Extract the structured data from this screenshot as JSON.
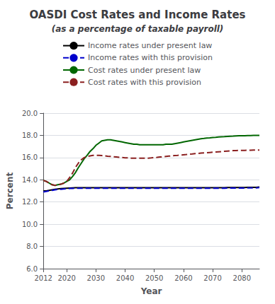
{
  "chart_data": {
    "type": "line",
    "title": "OASDI Cost Rates and Income Rates",
    "subtitle": "(as a percentage of taxable payroll)",
    "xlabel": "Year",
    "ylabel": "Percent",
    "x": [
      2012,
      2013,
      2014,
      2015,
      2016,
      2017,
      2018,
      2019,
      2020,
      2021,
      2022,
      2023,
      2024,
      2025,
      2026,
      2027,
      2028,
      2029,
      2030,
      2031,
      2032,
      2033,
      2034,
      2035,
      2036,
      2037,
      2038,
      2039,
      2040,
      2041,
      2042,
      2043,
      2044,
      2045,
      2046,
      2047,
      2048,
      2049,
      2050,
      2051,
      2052,
      2053,
      2054,
      2055,
      2056,
      2057,
      2058,
      2059,
      2060,
      2061,
      2062,
      2063,
      2064,
      2065,
      2066,
      2067,
      2068,
      2069,
      2070,
      2071,
      2072,
      2073,
      2074,
      2075,
      2076,
      2077,
      2078,
      2079,
      2080,
      2081,
      2082,
      2083,
      2084,
      2085,
      2086
    ],
    "series": [
      {
        "name": "Income rates under present law",
        "color": "#000000",
        "line_style": "solid",
        "values": [
          13.0,
          13.0,
          13.05,
          13.1,
          13.15,
          13.18,
          13.2,
          13.22,
          13.24,
          13.26,
          13.27,
          13.28,
          13.28,
          13.28,
          13.28,
          13.28,
          13.28,
          13.28,
          13.28,
          13.28,
          13.28,
          13.28,
          13.28,
          13.28,
          13.28,
          13.28,
          13.28,
          13.28,
          13.28,
          13.28,
          13.28,
          13.28,
          13.28,
          13.28,
          13.28,
          13.28,
          13.28,
          13.28,
          13.28,
          13.28,
          13.28,
          13.28,
          13.28,
          13.28,
          13.28,
          13.28,
          13.28,
          13.28,
          13.28,
          13.28,
          13.28,
          13.28,
          13.28,
          13.28,
          13.28,
          13.28,
          13.28,
          13.28,
          13.28,
          13.28,
          13.28,
          13.28,
          13.28,
          13.3,
          13.3,
          13.3,
          13.3,
          13.3,
          13.3,
          13.3,
          13.32,
          13.32,
          13.32,
          13.32,
          13.35
        ]
      },
      {
        "name": "Income rates with this provision",
        "color": "#0000cc",
        "line_style": "dashed",
        "values": [
          12.9,
          12.95,
          13.0,
          13.05,
          13.1,
          13.13,
          13.15,
          13.17,
          13.2,
          13.22,
          13.23,
          13.24,
          13.24,
          13.24,
          13.24,
          13.24,
          13.24,
          13.24,
          13.24,
          13.24,
          13.24,
          13.24,
          13.24,
          13.24,
          13.24,
          13.24,
          13.24,
          13.24,
          13.24,
          13.24,
          13.24,
          13.24,
          13.24,
          13.24,
          13.24,
          13.24,
          13.24,
          13.24,
          13.24,
          13.24,
          13.24,
          13.24,
          13.24,
          13.24,
          13.24,
          13.24,
          13.24,
          13.24,
          13.24,
          13.24,
          13.24,
          13.24,
          13.24,
          13.24,
          13.24,
          13.24,
          13.24,
          13.24,
          13.24,
          13.24,
          13.24,
          13.24,
          13.24,
          13.25,
          13.25,
          13.25,
          13.25,
          13.25,
          13.25,
          13.25,
          13.27,
          13.27,
          13.27,
          13.27,
          13.3
        ]
      },
      {
        "name": "Cost rates under present law",
        "color": "#006600",
        "line_style": "solid",
        "values": [
          13.95,
          13.85,
          13.7,
          13.55,
          13.5,
          13.55,
          13.6,
          13.7,
          13.85,
          14.0,
          14.3,
          14.65,
          15.1,
          15.5,
          15.9,
          16.2,
          16.55,
          16.8,
          17.1,
          17.3,
          17.5,
          17.55,
          17.6,
          17.6,
          17.55,
          17.5,
          17.45,
          17.4,
          17.35,
          17.3,
          17.25,
          17.2,
          17.2,
          17.15,
          17.15,
          17.15,
          17.15,
          17.15,
          17.15,
          17.15,
          17.15,
          17.15,
          17.2,
          17.2,
          17.2,
          17.25,
          17.3,
          17.35,
          17.4,
          17.45,
          17.5,
          17.55,
          17.6,
          17.65,
          17.7,
          17.72,
          17.75,
          17.77,
          17.8,
          17.82,
          17.85,
          17.87,
          17.88,
          17.9,
          17.92,
          17.93,
          17.95,
          17.96,
          17.97,
          17.97,
          17.98,
          17.98,
          17.99,
          17.99,
          18.0
        ]
      },
      {
        "name": "Cost rates with this provision",
        "color": "#8b2020",
        "line_style": "dashed",
        "values": [
          13.95,
          13.85,
          13.7,
          13.55,
          13.5,
          13.55,
          13.6,
          13.7,
          13.85,
          14.2,
          14.6,
          15.1,
          15.5,
          15.8,
          16.0,
          16.1,
          16.15,
          16.2,
          16.2,
          16.2,
          16.18,
          16.15,
          16.12,
          16.1,
          16.07,
          16.05,
          16.02,
          16.0,
          15.98,
          15.97,
          15.95,
          15.95,
          15.95,
          15.95,
          15.95,
          15.95,
          15.95,
          15.97,
          16.0,
          16.02,
          16.05,
          16.07,
          16.1,
          16.13,
          16.15,
          16.18,
          16.2,
          16.23,
          16.25,
          16.27,
          16.3,
          16.32,
          16.35,
          16.37,
          16.4,
          16.42,
          16.44,
          16.46,
          16.48,
          16.5,
          16.52,
          16.54,
          16.56,
          16.58,
          16.6,
          16.62,
          16.63,
          16.64,
          16.65,
          16.65,
          16.66,
          16.66,
          16.67,
          16.67,
          16.68
        ]
      }
    ],
    "xlim": [
      2012,
      2086
    ],
    "xticks": [
      2012,
      2020,
      2030,
      2040,
      2050,
      2060,
      2070,
      2080
    ],
    "ylim": [
      6.0,
      20.0
    ],
    "yticks": [
      {
        "value": 6.0,
        "label": "6.0"
      },
      {
        "value": 8.0,
        "label": "8.0"
      },
      {
        "value": 10.0,
        "label": "10.0"
      },
      {
        "value": 12.0,
        "label": "12.0"
      },
      {
        "value": 14.0,
        "label": "14.0"
      },
      {
        "value": 16.0,
        "label": "16.0"
      },
      {
        "value": 18.0,
        "label": "18.0"
      },
      {
        "value": 20.0,
        "label": "20.0"
      }
    ],
    "grid": true,
    "legend": "top"
  }
}
